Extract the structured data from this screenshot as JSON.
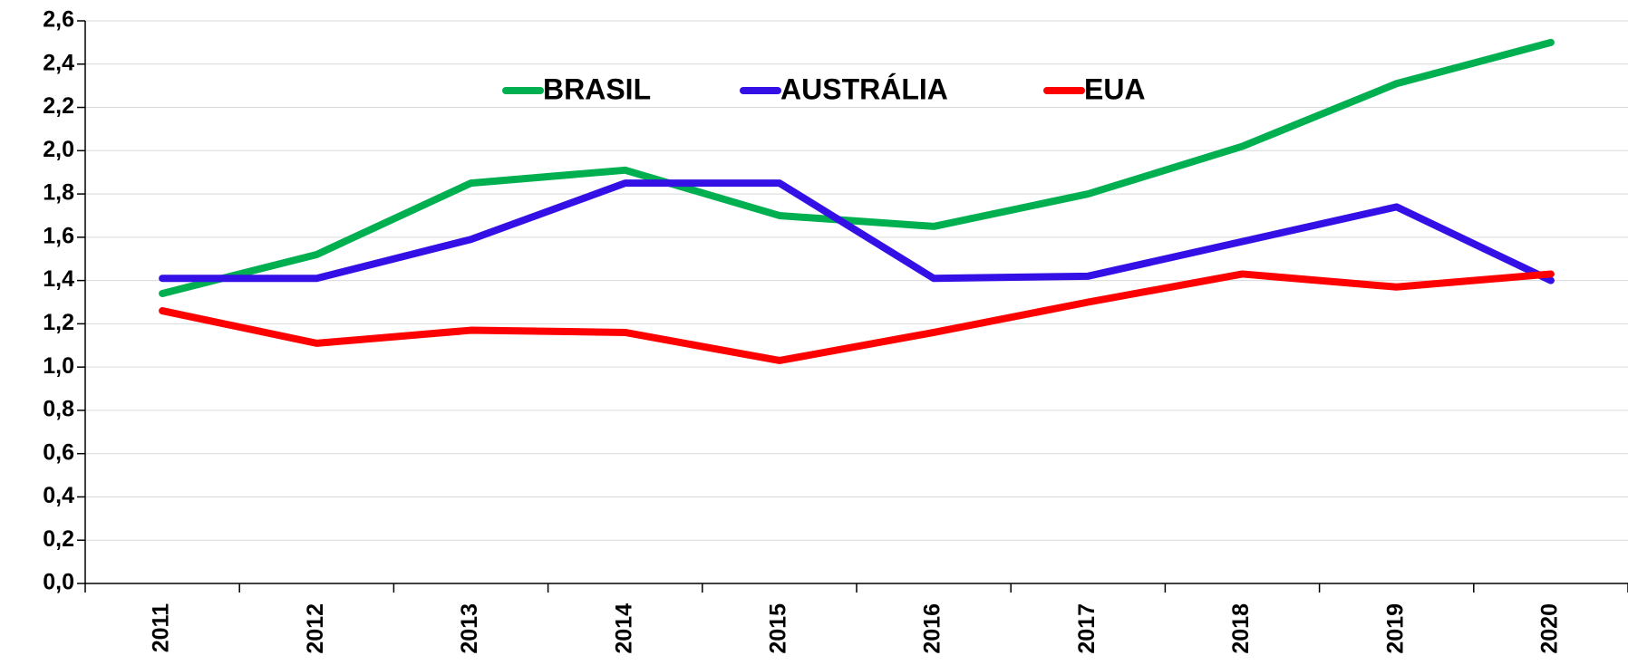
{
  "chart_data": {
    "type": "line",
    "categories": [
      "2011",
      "2012",
      "2013",
      "2014",
      "2015",
      "2016",
      "2017",
      "2018",
      "2019",
      "2020"
    ],
    "series": [
      {
        "name": "BRASIL",
        "color": "#00b050",
        "values": [
          1.34,
          1.52,
          1.85,
          1.91,
          1.7,
          1.65,
          1.8,
          2.02,
          2.31,
          2.5
        ]
      },
      {
        "name": "AUSTRÁLIA",
        "color": "#3410e6",
        "values": [
          1.41,
          1.41,
          1.59,
          1.85,
          1.85,
          1.41,
          1.42,
          1.58,
          1.74,
          1.4
        ]
      },
      {
        "name": "EUA",
        "color": "#ff0000",
        "values": [
          1.26,
          1.11,
          1.17,
          1.16,
          1.03,
          1.16,
          1.3,
          1.43,
          1.37,
          1.43
        ]
      }
    ],
    "ylim": [
      0,
      2.6
    ],
    "yticks": [
      {
        "value": 0,
        "label": "0,0"
      },
      {
        "value": 0.2,
        "label": "0,2"
      },
      {
        "value": 0.4,
        "label": "0,4"
      },
      {
        "value": 0.6,
        "label": "0,6"
      },
      {
        "value": 0.8,
        "label": "0,8"
      },
      {
        "value": 1.0,
        "label": "1,0"
      },
      {
        "value": 1.2,
        "label": "1,2"
      },
      {
        "value": 1.4,
        "label": "1,4"
      },
      {
        "value": 1.6,
        "label": "1,6"
      },
      {
        "value": 1.8,
        "label": "1,8"
      },
      {
        "value": 2.0,
        "label": "2,0"
      },
      {
        "value": 2.2,
        "label": "2,2"
      },
      {
        "value": 2.4,
        "label": "2,4"
      },
      {
        "value": 2.6,
        "label": "2,6"
      }
    ],
    "grid": true,
    "legend": "top"
  }
}
